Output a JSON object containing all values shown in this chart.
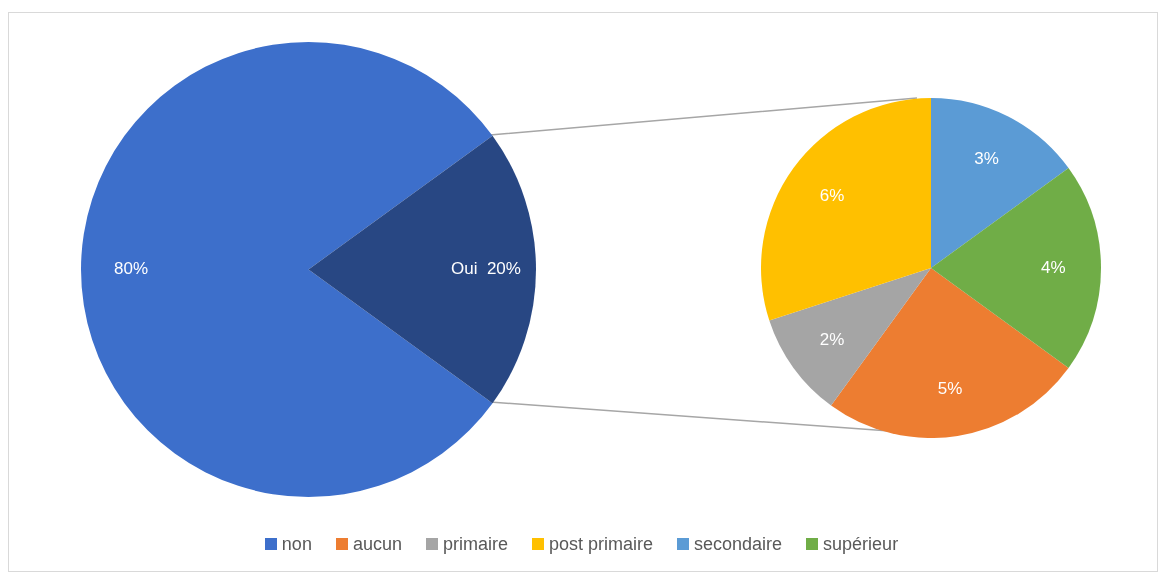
{
  "chart_data": [
    {
      "type": "pie",
      "categories": [
        "non",
        null
      ],
      "values": [
        80,
        20
      ],
      "colors": [
        "#3d6fcb",
        "#284783"
      ],
      "value_labels": [
        "80%",
        "Oui  20%"
      ],
      "legend": "bottom"
    },
    {
      "type": "pie",
      "categories": [
        "aucun",
        "primaire",
        "post primaire",
        "secondaire",
        "supérieur"
      ],
      "values": [
        5,
        2,
        6,
        3,
        4
      ],
      "colors": [
        "#ed7d31",
        "#a5a5a5",
        "#ffc000",
        "#5b9bd5",
        "#70ad47"
      ],
      "value_labels": [
        "5%",
        "2%",
        "6%",
        "3%",
        "4%"
      ],
      "legend": "bottom"
    }
  ]
}
